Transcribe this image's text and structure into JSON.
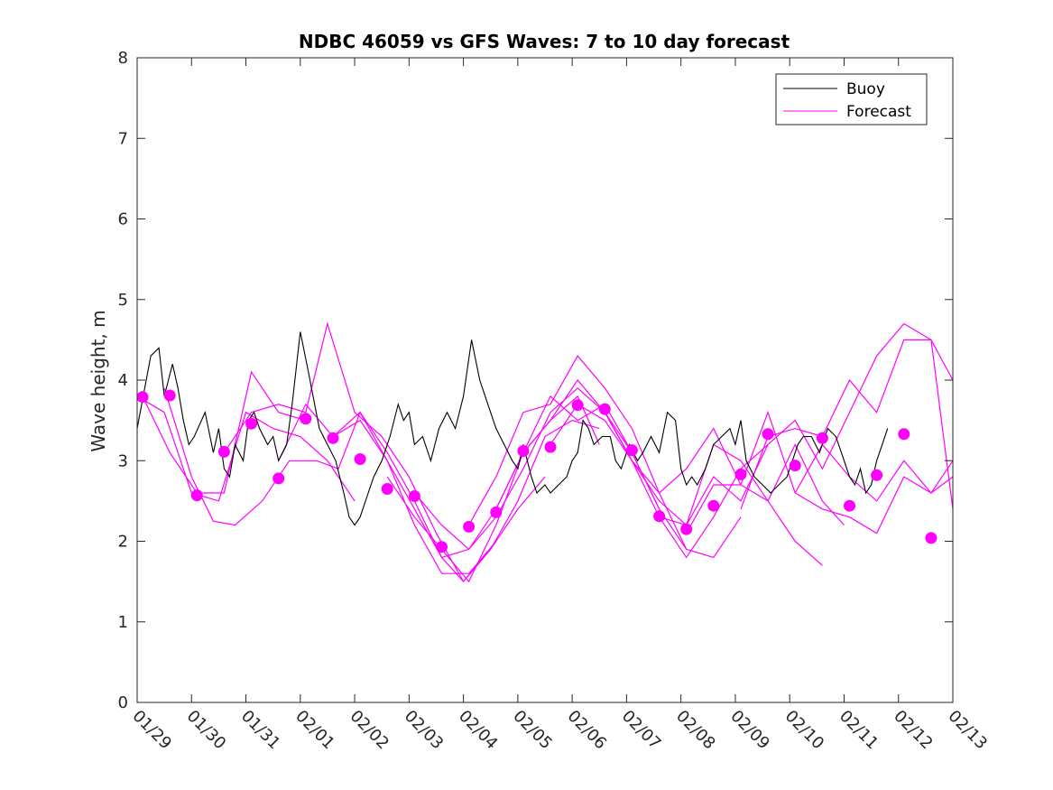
{
  "chart_data": {
    "type": "line",
    "title": "NDBC 46059 vs GFS Waves: 7 to 10 day forecast",
    "xlabel": "",
    "ylabel": "Wave height, m",
    "xlim": [
      0,
      15
    ],
    "ylim": [
      0,
      8
    ],
    "x_tick_values": [
      0,
      1,
      2,
      3,
      4,
      5,
      6,
      7,
      8,
      9,
      10,
      11,
      12,
      13,
      14,
      15
    ],
    "x_tick_labels": [
      "01/29",
      "01/30",
      "01/31",
      "02/01",
      "02/02",
      "02/03",
      "02/04",
      "02/05",
      "02/06",
      "02/07",
      "02/08",
      "02/09",
      "02/10",
      "02/11",
      "02/12",
      "02/13"
    ],
    "y_tick_values": [
      0,
      1,
      2,
      3,
      4,
      5,
      6,
      7,
      8
    ],
    "y_tick_labels": [
      "0",
      "1",
      "2",
      "3",
      "4",
      "5",
      "6",
      "7",
      "8"
    ],
    "colors": {
      "buoy": "#000000",
      "forecast": "#ff00ff"
    },
    "legend": {
      "placement": "top-right",
      "entries": [
        "Buoy",
        "Forecast"
      ]
    },
    "buoy": {
      "name": "Buoy",
      "x": [
        0.0,
        0.25,
        0.4,
        0.5,
        0.65,
        0.75,
        0.85,
        0.95,
        1.05,
        1.25,
        1.4,
        1.5,
        1.6,
        1.7,
        1.8,
        1.95,
        2.05,
        2.15,
        2.25,
        2.4,
        2.5,
        2.6,
        2.75,
        2.85,
        3.0,
        3.15,
        3.35,
        3.5,
        3.65,
        3.8,
        3.9,
        4.0,
        4.1,
        4.25,
        4.35,
        4.5,
        4.65,
        4.8,
        4.9,
        5.0,
        5.1,
        5.25,
        5.4,
        5.55,
        5.7,
        5.85,
        6.0,
        6.15,
        6.3,
        6.4,
        6.5,
        6.6,
        6.75,
        6.9,
        7.0,
        7.1,
        7.25,
        7.35,
        7.5,
        7.6,
        7.75,
        7.9,
        8.0,
        8.1,
        8.2,
        8.3,
        8.4,
        8.55,
        8.7,
        8.8,
        8.9,
        9.05,
        9.2,
        9.3,
        9.45,
        9.6,
        9.75,
        9.9,
        10.0,
        10.1,
        10.2,
        10.3,
        10.45,
        10.6,
        10.75,
        10.9,
        11.0,
        11.1,
        11.2,
        11.35,
        11.5,
        11.65,
        11.8,
        11.95,
        12.05,
        12.15,
        12.25,
        12.4,
        12.55,
        12.7,
        12.85,
        13.0,
        13.1,
        13.2,
        13.3,
        13.4,
        13.5,
        13.6,
        13.7,
        13.8
      ],
      "y": [
        3.4,
        4.3,
        4.4,
        3.8,
        4.2,
        3.9,
        3.5,
        3.2,
        3.3,
        3.6,
        3.1,
        3.4,
        2.9,
        2.8,
        3.2,
        3.0,
        3.5,
        3.6,
        3.4,
        3.2,
        3.3,
        3.0,
        3.2,
        3.7,
        4.6,
        4.1,
        3.4,
        3.2,
        3.0,
        2.6,
        2.3,
        2.2,
        2.3,
        2.6,
        2.8,
        3.0,
        3.3,
        3.7,
        3.5,
        3.6,
        3.2,
        3.3,
        3.0,
        3.4,
        3.6,
        3.4,
        3.8,
        4.5,
        4.0,
        3.8,
        3.6,
        3.4,
        3.2,
        3.0,
        2.9,
        3.2,
        2.8,
        2.6,
        2.7,
        2.6,
        2.7,
        2.8,
        3.0,
        3.1,
        3.5,
        3.4,
        3.2,
        3.3,
        3.3,
        3.0,
        2.9,
        3.2,
        3.0,
        3.1,
        3.3,
        3.1,
        3.6,
        3.5,
        2.9,
        2.7,
        2.8,
        2.7,
        2.9,
        3.2,
        3.3,
        3.4,
        3.2,
        3.5,
        3.0,
        2.8,
        2.7,
        2.6,
        2.7,
        2.8,
        3.0,
        3.2,
        3.3,
        3.3,
        3.1,
        3.4,
        3.3,
        3.0,
        2.8,
        2.7,
        2.9,
        2.6,
        2.7,
        3.0,
        3.2,
        3.4
      ]
    },
    "forecast_points": {
      "name": "Forecast",
      "x": [
        0.1,
        0.6,
        1.1,
        1.6,
        2.1,
        2.6,
        3.1,
        3.6,
        4.1,
        4.6,
        5.1,
        5.6,
        6.1,
        6.6,
        7.1,
        7.6,
        8.1,
        8.6,
        9.1,
        9.6,
        10.1,
        10.6,
        11.1,
        11.6,
        12.1,
        12.6,
        13.1,
        13.6,
        14.1,
        14.6
      ],
      "y": [
        3.79,
        3.81,
        2.57,
        3.11,
        3.46,
        2.78,
        3.52,
        3.28,
        3.02,
        2.65,
        2.56,
        1.93,
        2.18,
        2.36,
        3.12,
        3.17,
        3.69,
        3.64,
        3.13,
        2.31,
        2.15,
        2.44,
        2.83,
        3.33,
        2.94,
        3.28,
        2.44,
        2.82,
        3.33,
        2.04
      ]
    },
    "forecast_lines": [
      {
        "x": [
          0.0,
          0.5,
          1.0,
          1.5,
          2.0,
          2.5,
          3.0,
          3.5,
          4.0
        ],
        "y": [
          3.8,
          3.6,
          2.6,
          2.5,
          3.6,
          3.4,
          3.3,
          3.0,
          2.5
        ]
      },
      {
        "x": [
          0.1,
          0.6,
          1.1,
          1.6,
          2.1,
          2.6,
          3.1
        ],
        "y": [
          3.8,
          3.1,
          2.6,
          2.6,
          4.1,
          3.6,
          3.5
        ]
      },
      {
        "x": [
          0.5,
          1.0,
          1.4,
          1.8,
          2.3,
          2.8,
          3.3,
          3.7,
          4.1,
          4.6,
          5.1,
          5.6,
          6.1,
          6.6
        ],
        "y": [
          3.9,
          2.8,
          2.25,
          2.2,
          2.5,
          3.0,
          3.0,
          2.9,
          3.6,
          3.0,
          2.2,
          1.6,
          1.6,
          2.0
        ]
      },
      {
        "x": [
          1.6,
          2.1,
          2.6,
          3.1,
          3.5,
          4.0,
          4.5,
          5.0,
          5.5,
          6.0,
          6.5,
          7.0,
          7.5
        ],
        "y": [
          3.1,
          3.6,
          3.7,
          3.6,
          4.7,
          3.6,
          3.3,
          2.8,
          2.1,
          1.5,
          1.9,
          2.4,
          2.8
        ]
      },
      {
        "x": [
          2.6,
          3.1,
          3.6,
          4.1,
          4.6,
          5.1,
          5.6,
          6.0,
          6.5,
          7.0,
          7.5,
          8.0,
          8.5
        ],
        "y": [
          3.0,
          3.7,
          3.3,
          3.6,
          3.1,
          2.5,
          1.8,
          1.5,
          1.9,
          2.5,
          3.3,
          3.5,
          3.4
        ]
      },
      {
        "x": [
          3.6,
          4.1,
          4.6,
          5.1,
          5.6,
          6.1,
          6.6,
          7.1,
          7.6,
          8.1,
          8.5
        ],
        "y": [
          3.3,
          3.5,
          3.0,
          2.4,
          1.8,
          1.9,
          2.4,
          3.1,
          3.5,
          3.8,
          3.2
        ]
      },
      {
        "x": [
          4.6,
          5.1,
          5.6,
          6.1,
          6.6,
          7.1,
          7.6,
          8.1,
          8.6,
          9.1,
          9.6
        ],
        "y": [
          2.8,
          2.3,
          1.9,
          1.5,
          2.2,
          3.1,
          3.8,
          3.5,
          3.7,
          3.1,
          2.4
        ]
      },
      {
        "x": [
          5.1,
          5.6,
          6.1,
          6.6,
          7.1,
          7.6,
          8.1,
          8.6,
          9.1,
          9.6,
          10.1
        ],
        "y": [
          2.6,
          2.2,
          1.9,
          2.3,
          2.9,
          3.6,
          3.9,
          3.6,
          3.1,
          2.4,
          1.9
        ]
      },
      {
        "x": [
          6.1,
          6.6,
          7.1,
          7.6,
          8.1,
          8.6,
          9.1,
          9.6,
          10.1,
          10.6,
          11.1
        ],
        "y": [
          2.2,
          2.8,
          3.6,
          3.7,
          4.3,
          3.9,
          3.4,
          2.6,
          1.9,
          1.8,
          2.3
        ]
      },
      {
        "x": [
          6.6,
          7.1,
          7.6,
          8.1,
          8.6,
          9.1,
          9.6,
          10.1,
          10.6,
          11.1,
          11.6
        ],
        "y": [
          2.4,
          3.1,
          3.5,
          4.0,
          3.6,
          3.0,
          2.3,
          1.8,
          2.3,
          2.9,
          3.2
        ]
      },
      {
        "x": [
          7.6,
          8.1,
          8.6,
          9.1,
          9.6,
          10.1,
          10.6,
          11.1,
          11.6,
          12.1,
          12.6
        ],
        "y": [
          3.2,
          3.7,
          3.5,
          3.0,
          2.5,
          2.2,
          3.2,
          3.0,
          2.5,
          2.0,
          1.7
        ]
      },
      {
        "x": [
          8.6,
          9.1,
          9.6,
          10.1,
          10.6,
          11.1,
          11.6,
          12.1,
          12.6,
          13.0
        ],
        "y": [
          3.6,
          3.0,
          2.6,
          2.9,
          3.4,
          2.7,
          2.5,
          3.2,
          2.5,
          2.2
        ]
      },
      {
        "x": [
          9.6,
          10.1,
          10.6,
          11.1,
          11.6,
          12.1,
          12.6,
          13.1,
          13.6,
          14.1,
          14.6,
          15.0
        ],
        "y": [
          2.3,
          2.2,
          2.8,
          2.5,
          3.2,
          3.5,
          2.9,
          3.6,
          4.3,
          4.7,
          4.5,
          4.0
        ]
      },
      {
        "x": [
          10.1,
          10.6,
          11.1,
          11.6,
          12.1,
          12.6,
          13.1,
          13.6,
          14.1,
          14.6,
          15.0
        ],
        "y": [
          2.1,
          2.7,
          2.7,
          3.6,
          2.6,
          2.4,
          2.3,
          2.1,
          2.8,
          2.6,
          3.0
        ]
      },
      {
        "x": [
          11.1,
          11.6,
          12.1,
          12.6,
          13.1,
          13.6,
          14.1,
          14.6,
          15.0
        ],
        "y": [
          2.4,
          3.3,
          3.4,
          3.3,
          4.0,
          3.6,
          4.5,
          4.5,
          2.4
        ]
      },
      {
        "x": [
          12.1,
          12.6,
          13.1,
          13.6,
          14.1,
          14.6,
          15.0
        ],
        "y": [
          2.6,
          3.2,
          2.8,
          2.5,
          3.0,
          2.6,
          2.8
        ]
      }
    ]
  }
}
